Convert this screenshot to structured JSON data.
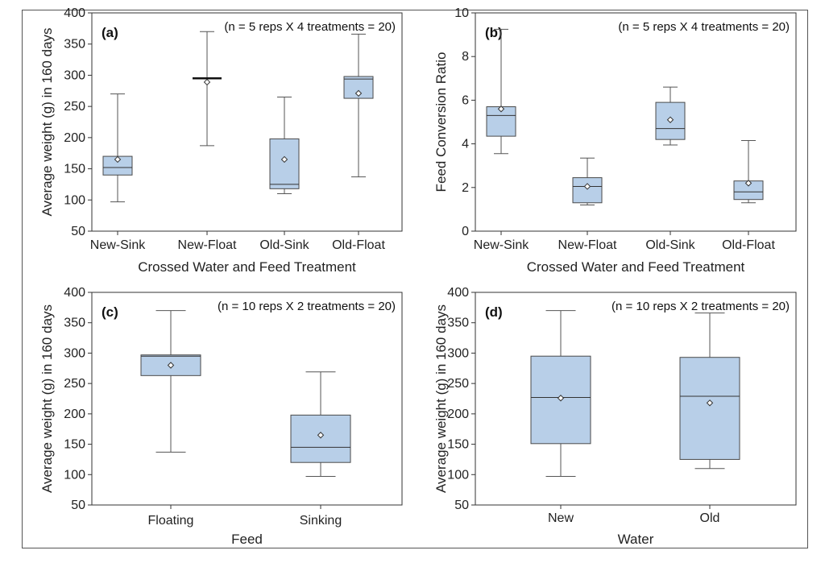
{
  "colors": {
    "box_fill": "#b8cfe8",
    "box_stroke": "#4a4a4a",
    "axis": "#333333",
    "whisker": "#555555"
  },
  "chart_data": [
    {
      "type": "boxplot",
      "panel": "(a)",
      "annotation": "(n = 5 reps X 4 treatments = 20)",
      "xlabel": "Crossed Water and Feed Treatment",
      "ylabel": "Average weight (g) in 160 days",
      "ylim": [
        50,
        400
      ],
      "yticks": [
        50,
        100,
        150,
        200,
        250,
        300,
        350,
        400
      ],
      "categories": [
        "New-Sink",
        "New-Float",
        "Old-Sink",
        "Old-Float"
      ],
      "boxes": [
        {
          "min": 97,
          "q1": 140,
          "median": 152,
          "q3": 170,
          "max": 270,
          "mean": 165
        },
        {
          "min": 187,
          "q1": 294,
          "median": 295,
          "q3": 296,
          "max": 370,
          "mean": 289
        },
        {
          "min": 110,
          "q1": 118,
          "median": 125,
          "q3": 198,
          "max": 265,
          "mean": 165
        },
        {
          "min": 137,
          "q1": 263,
          "median": 294,
          "q3": 298,
          "max": 366,
          "mean": 271
        }
      ]
    },
    {
      "type": "boxplot",
      "panel": "(b)",
      "annotation": "(n = 5 reps X 4 treatments = 20)",
      "xlabel": "Crossed Water and Feed Treatment",
      "ylabel": "Feed Conversion Ratio",
      "ylim": [
        0,
        10
      ],
      "yticks": [
        0,
        2,
        4,
        6,
        8,
        10
      ],
      "categories": [
        "New-Sink",
        "New-Float",
        "Old-Sink",
        "Old-Float"
      ],
      "boxes": [
        {
          "min": 3.55,
          "q1": 4.35,
          "median": 5.3,
          "q3": 5.7,
          "max": 9.25,
          "mean": 5.6
        },
        {
          "min": 1.2,
          "q1": 1.3,
          "median": 2.05,
          "q3": 2.45,
          "max": 3.35,
          "mean": 2.05
        },
        {
          "min": 3.95,
          "q1": 4.2,
          "median": 4.7,
          "q3": 5.9,
          "max": 6.6,
          "mean": 5.1
        },
        {
          "min": 1.3,
          "q1": 1.45,
          "median": 1.8,
          "q3": 2.3,
          "max": 4.15,
          "mean": 2.2
        }
      ]
    },
    {
      "type": "boxplot",
      "panel": "(c)",
      "annotation": "(n = 10 reps X 2 treatments = 20)",
      "xlabel": "Feed",
      "ylabel": "Average weight (g) in 160 days",
      "ylim": [
        50,
        400
      ],
      "yticks": [
        50,
        100,
        150,
        200,
        250,
        300,
        350,
        400
      ],
      "categories": [
        "Floating",
        "Sinking"
      ],
      "boxes": [
        {
          "min": 137,
          "q1": 263,
          "median": 295,
          "q3": 297,
          "max": 370,
          "mean": 280
        },
        {
          "min": 97,
          "q1": 120,
          "median": 145,
          "q3": 198,
          "max": 269,
          "mean": 165
        }
      ]
    },
    {
      "type": "boxplot",
      "panel": "(d)",
      "annotation": "(n = 10 reps X 2 treatments = 20)",
      "xlabel": "Water",
      "ylabel": "Average weight (g) in 160 days",
      "ylim": [
        50,
        400
      ],
      "yticks": [
        50,
        100,
        150,
        200,
        250,
        300,
        350,
        400
      ],
      "categories": [
        "New",
        "Old"
      ],
      "boxes": [
        {
          "min": 97,
          "q1": 151,
          "median": 227,
          "q3": 295,
          "max": 370,
          "mean": 226
        },
        {
          "min": 110,
          "q1": 125,
          "median": 229,
          "q3": 293,
          "max": 366,
          "mean": 218
        }
      ]
    }
  ]
}
